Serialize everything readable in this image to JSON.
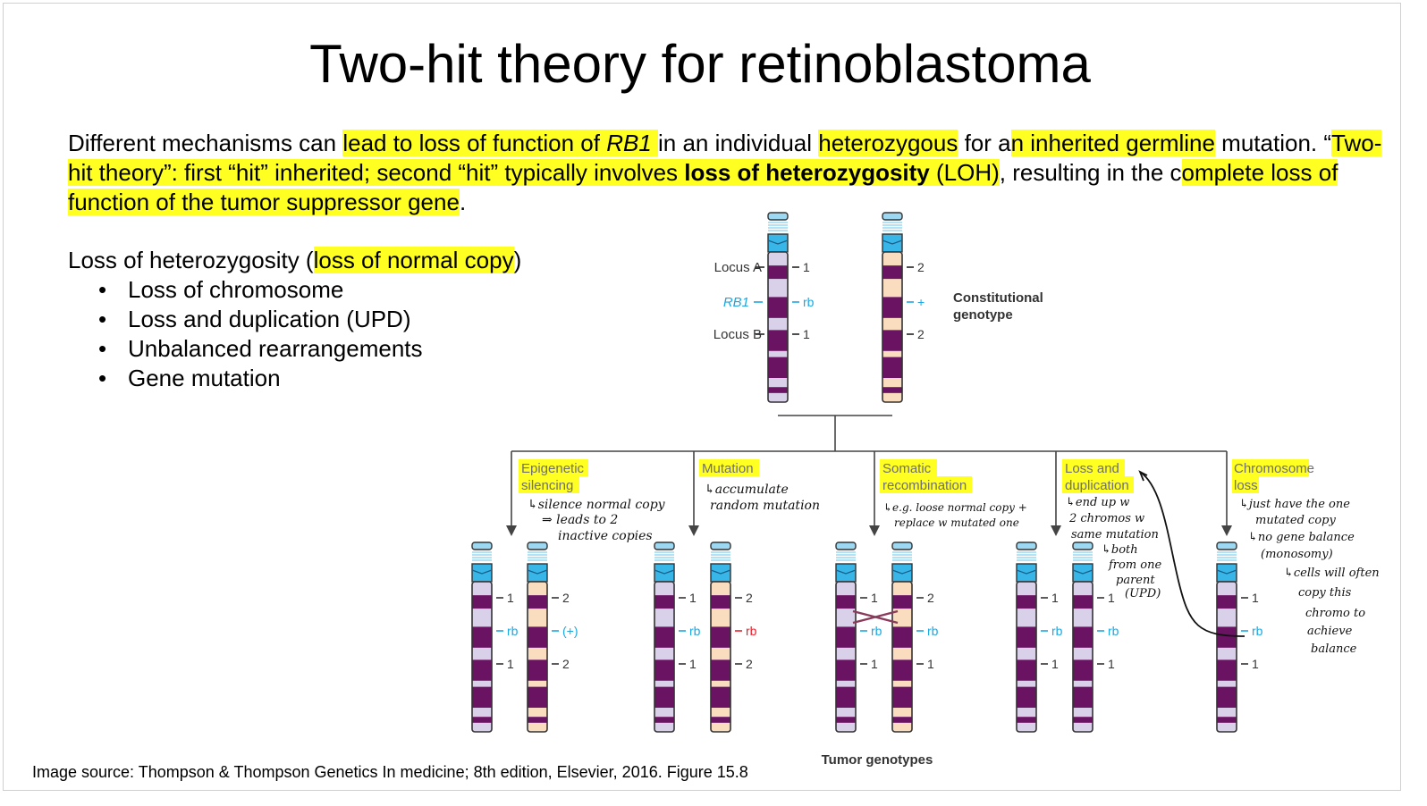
{
  "slide": {
    "title": "Two-hit theory for retinoblastoma",
    "intro": {
      "s1": "Different mechanisms can ",
      "s2": "lead to loss of function of ",
      "s3": "RB1",
      "s4": " ",
      "s5": "in an individual ",
      "s6": "heterozygous",
      "s7": " for a",
      "s8": "n inherited germline",
      "s9": " mutation. “",
      "s10": "Two-hit theory”: first “hit” inherited; second “hit” typically involves ",
      "s11": "loss of heterozygosity",
      "s12": " (LOH)",
      "s13": ", resulting in the c",
      "s14": "omplete loss of function of the tumor suppressor gene",
      "s15": "."
    },
    "loh": {
      "pre": "Loss of heterozygosity ",
      "paren_open": "(",
      "hl": "loss of normal copy",
      "paren_close": ")"
    },
    "bullets": [
      "Loss of chromosome",
      "Loss and duplication (UPD)",
      "Unbalanced rearrangements",
      "Gene mutation"
    ],
    "source": "Image source: Thompson & Thompson Genetics In medicine; 8th edition, Elsevier, 2016. Figure 15.8"
  },
  "figure": {
    "top": {
      "locus_a": "Locus A",
      "rb1": "RB1",
      "locus_b": "Locus B",
      "left_marks": [
        "1",
        "rb",
        "1"
      ],
      "right_marks": [
        "2",
        "+",
        "2"
      ],
      "constitutional": [
        "Constitutional",
        "genotype"
      ]
    },
    "branches": [
      {
        "title": [
          "Epigenetic",
          "silencing"
        ],
        "left": [
          "1",
          "rb",
          "1"
        ],
        "right": [
          "2",
          "(+)",
          "2"
        ]
      },
      {
        "title": [
          "Mutation"
        ],
        "left": [
          "1",
          "rb",
          "1"
        ],
        "right": [
          "2",
          "rb",
          "2"
        ]
      },
      {
        "title": [
          "Somatic",
          "recombination"
        ],
        "left": [
          "1",
          "rb",
          "1"
        ],
        "right": [
          "2",
          "rb",
          "1"
        ]
      },
      {
        "title": [
          "Loss and",
          "duplication"
        ],
        "left": [
          "1",
          "rb",
          "1"
        ],
        "right": [
          "1",
          "rb",
          "1"
        ]
      },
      {
        "title": [
          "Chromosome",
          "loss"
        ],
        "left": [
          "1",
          "rb",
          "1"
        ]
      }
    ],
    "tumor_genotypes": "Tumor genotypes",
    "notes": {
      "epigenetic": [
        "↳silence normal copy",
        "⇒ leads to 2",
        "inactive copies"
      ],
      "mutation": [
        "↳accumulate",
        "random mutation"
      ],
      "somatic": [
        "↳e.g. loose normal copy +",
        "replace w mutated one"
      ],
      "loss_dup": [
        "↳end up w",
        "2 chromos w",
        "same mutation",
        "↳both",
        "from one",
        "parent",
        "(UPD)"
      ],
      "chrom_loss": [
        "↳just have the one",
        "mutated copy",
        "↳no gene balance",
        "(monosomy)",
        "↳cells will often",
        "copy this",
        "chromo to",
        "achieve",
        "balance"
      ]
    },
    "colors": {
      "highlight": "#ffff21",
      "purple": "#6a1363",
      "lavender": "#d9d0ea",
      "peach": "#fadcbf",
      "centromere": "#38b6e8",
      "cap": "#9cd8f2",
      "rb_blue": "#1ea7e0",
      "rb_red": "#e8212d"
    },
    "icons": [
      "arrow-down-icon",
      "curved-arrow-icon",
      "crossover-x-icon"
    ]
  }
}
